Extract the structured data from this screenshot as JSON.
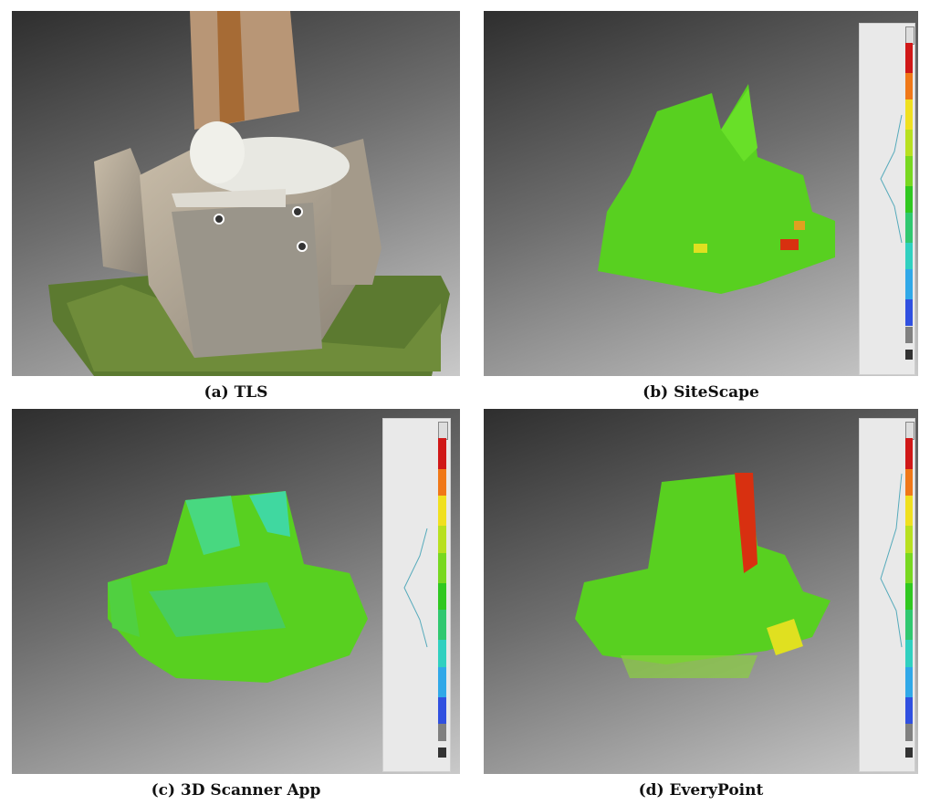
{
  "captions": {
    "a": "(a) TLS",
    "b": "(b) SiteScape",
    "c": "(c) 3D Scanner App",
    "d": "(d) EveryPoint"
  },
  "colors": {
    "scale": [
      "#bdbdbd",
      "#d01818",
      "#f07818",
      "#f0e020",
      "#b8e020",
      "#78d820",
      "#30c820",
      "#30c870",
      "#30d0c0",
      "#30a8e8",
      "#3050e0",
      "#808080"
    ],
    "cloud_green": "#58d020",
    "cloud_cyan": "#40d8a0",
    "cloud_red": "#d83010"
  }
}
